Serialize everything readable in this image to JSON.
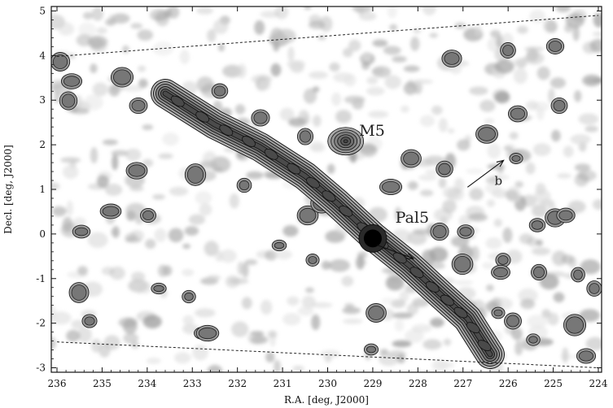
{
  "chart_data": {
    "type": "heatmap",
    "xlabel": "R.A. [deg, J2000]",
    "ylabel": "Decl. [deg, J2000]",
    "xlim": [
      236,
      224
    ],
    "ylim": [
      -3.1,
      5.1
    ],
    "xticks": [
      "236",
      "235",
      "234",
      "233",
      "232",
      "231",
      "230",
      "229",
      "228",
      "227",
      "226",
      "225",
      "224"
    ],
    "yticks": [
      "-3",
      "-2",
      "-1",
      "0",
      "1",
      "2",
      "3",
      "4",
      "5"
    ],
    "boundary_lines": [
      {
        "style": "dashed",
        "points": [
          [
            236,
            3.98
          ],
          [
            224,
            4.9
          ]
        ]
      },
      {
        "style": "dashed",
        "points": [
          [
            236,
            -2.42
          ],
          [
            224,
            -3.0
          ]
        ]
      }
    ],
    "stream_ridge": [
      [
        233.6,
        3.15
      ],
      [
        232.5,
        2.45
      ],
      [
        231.5,
        1.95
      ],
      [
        230.5,
        1.3
      ],
      [
        229.8,
        0.7
      ],
      [
        229.0,
        -0.05
      ],
      [
        228.2,
        -0.7
      ],
      [
        227.5,
        -1.35
      ],
      [
        226.9,
        -1.9
      ],
      [
        226.4,
        -2.7
      ]
    ],
    "clusters": [
      {
        "name": "M5",
        "ra": 229.6,
        "dec": 2.08
      },
      {
        "name": "Pal5",
        "ra": 229.0,
        "dec": -0.1
      }
    ],
    "annotations": [
      {
        "text": "M5",
        "ra": 229.3,
        "dec": 2.2
      },
      {
        "text": "Pal5",
        "ra": 228.5,
        "dec": 0.25
      },
      {
        "text": "b",
        "ra": 226.3,
        "dec": 1.1
      }
    ],
    "arrows": [
      {
        "from": [
          228.9,
          -0.25
        ],
        "to": [
          228.1,
          -0.55
        ]
      },
      {
        "from": [
          226.9,
          1.05
        ],
        "to": [
          226.1,
          1.65
        ]
      }
    ]
  }
}
